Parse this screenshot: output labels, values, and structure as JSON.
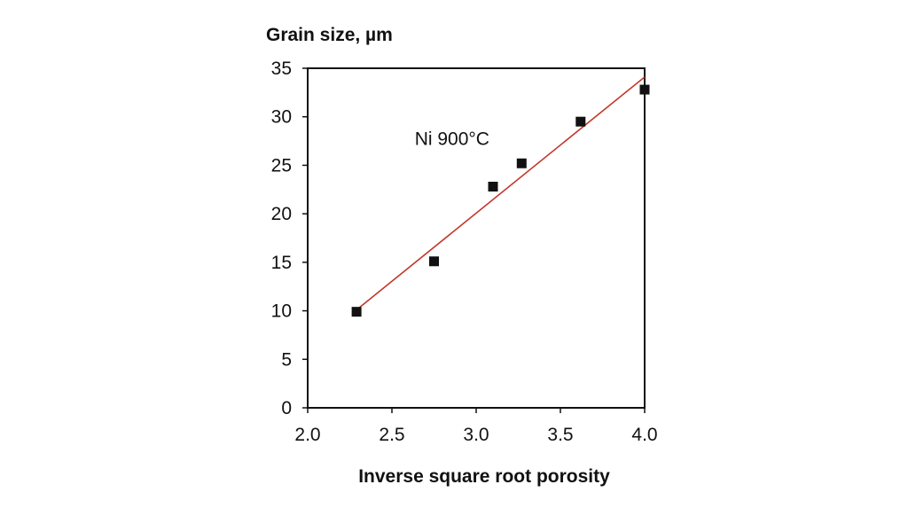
{
  "chart_data": {
    "type": "scatter",
    "title": "",
    "xlabel": "Inverse square root porosity",
    "ylabel": "Grain size, µm",
    "xlim": [
      2.0,
      4.0
    ],
    "ylim": [
      0,
      35
    ],
    "x_ticks": [
      "2.0",
      "2.5",
      "3.0",
      "3.5",
      "4.0"
    ],
    "y_ticks": [
      "0",
      "5",
      "10",
      "15",
      "20",
      "25",
      "30",
      "35"
    ],
    "grid": false,
    "legend": "none",
    "annotations": [
      {
        "text": "Ni 900°C",
        "x": 2.33,
        "y": 28.0
      }
    ],
    "series": [
      {
        "marker": "square",
        "color": "#111111",
        "points": [
          {
            "x": 2.29,
            "y": 9.9
          },
          {
            "x": 2.75,
            "y": 15.1
          },
          {
            "x": 3.1,
            "y": 22.8
          },
          {
            "x": 3.27,
            "y": 25.2
          },
          {
            "x": 3.62,
            "y": 29.5
          },
          {
            "x": 4.0,
            "y": 32.8
          }
        ]
      }
    ],
    "trendline": {
      "type": "linear",
      "color": "#c0392b",
      "from": {
        "x": 2.29,
        "y": 10.1
      },
      "to": {
        "x": 4.0,
        "y": 34.1
      }
    }
  }
}
